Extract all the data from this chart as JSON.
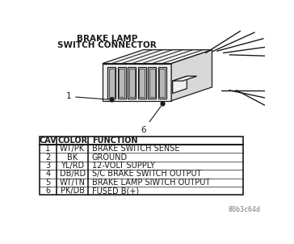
{
  "title_line1": "BRAKE LAMP",
  "title_line2": "SWITCH CONNECTOR",
  "table_headers": [
    "CAV",
    "COLOR",
    "FUNCTION"
  ],
  "table_rows": [
    [
      "1",
      "WT/PK",
      "BRAKE SWITCH SENSE"
    ],
    [
      "2",
      "BK",
      "GROUND"
    ],
    [
      "3",
      "YL/RD",
      "12-VOLT SUPPLY"
    ],
    [
      "4",
      "DB/RD",
      "S/C BRAKE SWITCH OUTPUT"
    ],
    [
      "5",
      "WT/TN",
      "BRAKE LAMP SIWTCH OUTPUT"
    ],
    [
      "6",
      "PK/DB",
      "FUSED B(+)"
    ]
  ],
  "watermark": "80b3c64d",
  "bg_color": "#ffffff",
  "label1": "1",
  "label6": "6",
  "line_color": "#1a1a1a",
  "fill_light": "#f0f0f0",
  "fill_mid": "#d8d8d8",
  "fill_dark": "#b8b8b8"
}
